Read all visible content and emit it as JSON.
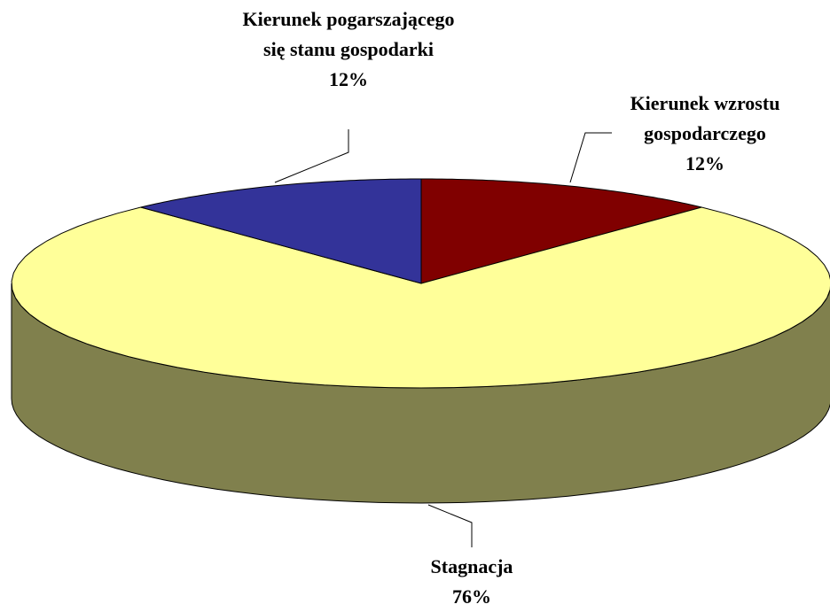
{
  "chart_data": {
    "type": "pie",
    "categories": [
      "Kierunek wzrostu gospodarczego",
      "Stagnacja",
      "Kierunek pogarszającego się stanu gospodarki"
    ],
    "values": [
      12,
      76,
      12
    ],
    "value_labels": [
      "12%",
      "76%",
      "12%"
    ],
    "colors": [
      "#800000",
      "#FFFF99",
      "#333399"
    ]
  }
}
